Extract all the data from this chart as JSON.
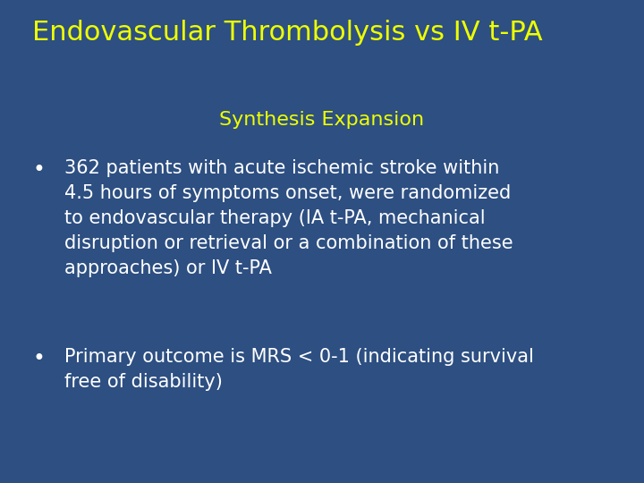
{
  "background_color": "#2D4F82",
  "title": "Endovascular Thrombolysis vs IV t-PA",
  "title_color": "#EEFF00",
  "title_fontsize": 22,
  "title_fontweight": "normal",
  "subtitle": "Synthesis Expansion",
  "subtitle_color": "#EEFF00",
  "subtitle_fontsize": 16,
  "bullet_color": "#FFFFFF",
  "bullet_fontsize": 15,
  "bullet1": "362 patients with acute ischemic stroke within\n4.5 hours of symptoms onset, were randomized\nto endovascular therapy (IA t-PA, mechanical\ndisruption or retrieval or a combination of these\napproaches) or IV t-PA",
  "bullet2": "Primary outcome is MRS < 0-1 (indicating survival\nfree of disability)"
}
